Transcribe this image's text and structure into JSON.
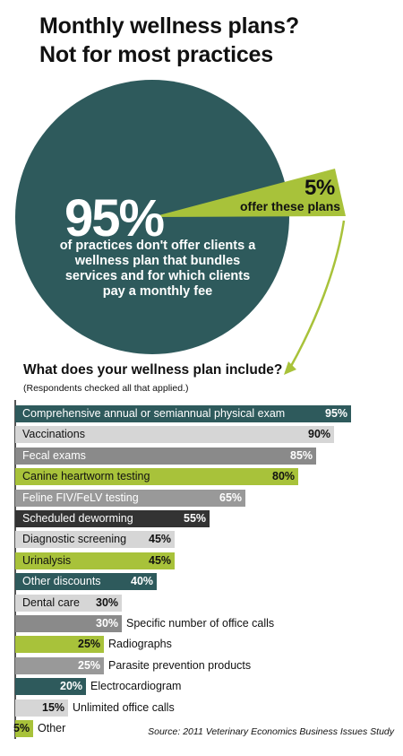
{
  "header": {
    "title_line1": "Monthly wellness plans?",
    "title_line2": "Not for most practices"
  },
  "colors": {
    "teal": "#2e5a5c",
    "lime": "#a8c23a",
    "light_gray": "#d6d6d6",
    "mid_gray": "#999999",
    "dark_gray": "#8a8a8a",
    "black": "#333333"
  },
  "pie": {
    "big_value": "95%",
    "big_text": "of practices don't offer clients a wellness plan that bundles services and for which clients pay a monthly fee",
    "small_value": "5%",
    "small_text": "offer these plans"
  },
  "question": {
    "title": "What does your wellness plan include?",
    "subtitle": "(Respondents checked all that applied.)"
  },
  "source": "Source: 2011 Veterinary Economics Business Issues Study",
  "chart_data": [
    {
      "type": "pie",
      "categories": [
        "95%",
        "5%"
      ],
      "values": [
        95,
        5
      ],
      "labels": [
        "of practices don't offer clients a wellness plan that bundles services and for which clients pay a monthly fee",
        "offer these plans"
      ],
      "title": "Monthly wellness plans? Not for most practices"
    },
    {
      "type": "bar",
      "orientation": "horizontal",
      "title": "What does your wellness plan include?",
      "subtitle": "(Respondents checked all that applied.)",
      "xlim": [
        0,
        100
      ],
      "categories": [
        "Comprehensive annual or semiannual physical exam",
        "Vaccinations",
        "Fecal exams",
        "Canine heartworm testing",
        "Feline FIV/FeLV testing",
        "Scheduled deworming",
        "Diagnostic screening",
        "Urinalysis",
        "Other discounts",
        "Dental care",
        "Specific number of office calls",
        "Radiographs",
        "Parasite prevention products",
        "Electrocardiogram",
        "Unlimited office calls",
        "Other"
      ],
      "values": [
        95,
        90,
        85,
        80,
        65,
        55,
        45,
        45,
        40,
        30,
        30,
        25,
        25,
        20,
        15,
        5
      ],
      "value_labels": [
        "95%",
        "90%",
        "85%",
        "80%",
        "65%",
        "55%",
        "45%",
        "45%",
        "40%",
        "30%",
        "30%",
        "25%",
        "25%",
        "20%",
        "15%",
        "5%"
      ],
      "bar_colors": [
        "#2e5a5c",
        "#d6d6d6",
        "#8a8a8a",
        "#a8c23a",
        "#999999",
        "#333333",
        "#d6d6d6",
        "#a8c23a",
        "#2e5a5c",
        "#d6d6d6",
        "#8a8a8a",
        "#a8c23a",
        "#999999",
        "#2e5a5c",
        "#d6d6d6",
        "#a8c23a"
      ],
      "grid": false,
      "legend": "none"
    }
  ]
}
